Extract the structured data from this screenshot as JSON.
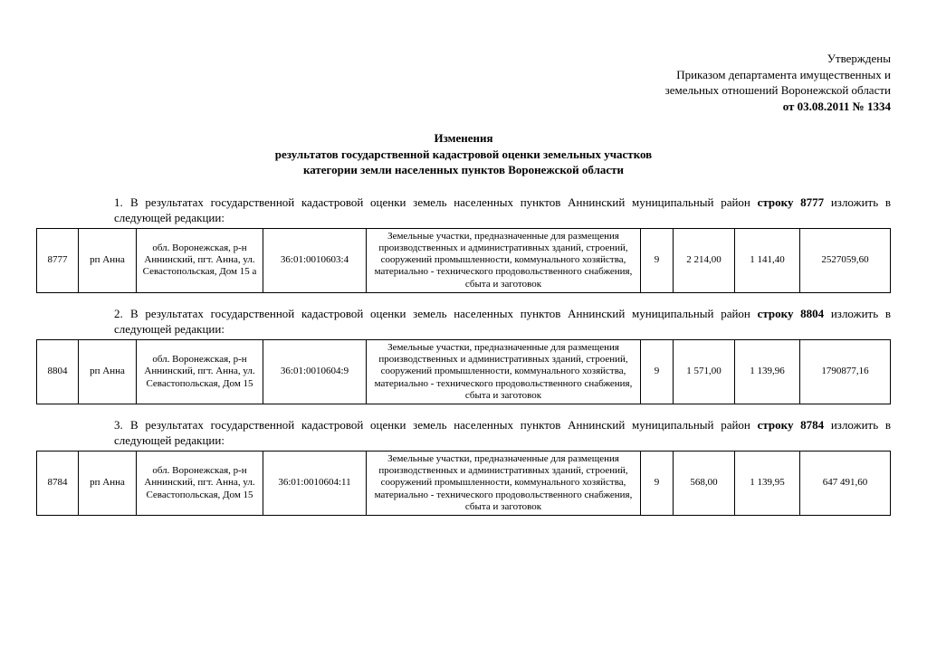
{
  "approval": {
    "line1": "Утверждены",
    "line2": "Приказом департамента имущественных и",
    "line3": "земельных отношений Воронежской области",
    "line4": "от 03.08.2011 № 1334"
  },
  "title": {
    "line1": "Изменения",
    "line2": "результатов государственной кадастровой оценки земельных участков",
    "line3": "категории земли населенных пунктов Воронежской области"
  },
  "sections": [
    {
      "num": "1.",
      "prefix": "В результатах государственной кадастровой оценки земель населенных пунктов Аннинский муниципальный район ",
      "bold": "строку 8777",
      "suffix": " изложить в следующей редакции:",
      "row": {
        "idx": "8777",
        "rp": "рп Анна",
        "addr": "обл. Воронежская, р-н Аннинский, пгт. Анна, ул. Севастопольская, Дом 15 а",
        "cad": "36:01:0010603:4",
        "desc": "Земельные участки, предназначенные для размещения производственных и административных зданий, строений, сооружений промышленности, коммунального хозяйства, материально - технического продовольственного снабжения, сбыта и заготовок",
        "n": "9",
        "v1": "2 214,00",
        "v2": "1 141,40",
        "v3": "2527059,60"
      }
    },
    {
      "num": "2.",
      "prefix": "В результатах государственной кадастровой оценки земель населенных пунктов Аннинский муниципальный район ",
      "bold": "строку 8804",
      "suffix": " изложить в следующей редакции:",
      "row": {
        "idx": "8804",
        "rp": "рп Анна",
        "addr": "обл. Воронежская, р-н Аннинский, пгт. Анна, ул. Севастопольская, Дом 15",
        "cad": "36:01:0010604:9",
        "desc": "Земельные участки, предназначенные для размещения производственных и административных зданий, строений, сооружений промышленности, коммунального хозяйства, материально - технического продовольственного снабжения, сбыта и заготовок",
        "n": "9",
        "v1": "1 571,00",
        "v2": "1 139,96",
        "v3": "1790877,16"
      }
    },
    {
      "num": "3.",
      "prefix": "В результатах государственной кадастровой оценки земель населенных пунктов Аннинский муниципальный район ",
      "bold": "строку 8784",
      "suffix": " изложить в следующей редакции:",
      "row": {
        "idx": "8784",
        "rp": "рп Анна",
        "addr": "обл. Воронежская, р-н Аннинский, пгт. Анна, ул. Севастопольская, Дом 15",
        "cad": "36:01:0010604:11",
        "desc": "Земельные участки, предназначенные для размещения производственных и административных зданий, строений, сооружений промышленности, коммунального хозяйства, материально - технического продовольственного снабжения, сбыта и заготовок",
        "n": "9",
        "v1": "568,00",
        "v2": "1 139,95",
        "v3": "647 491,60"
      }
    }
  ]
}
